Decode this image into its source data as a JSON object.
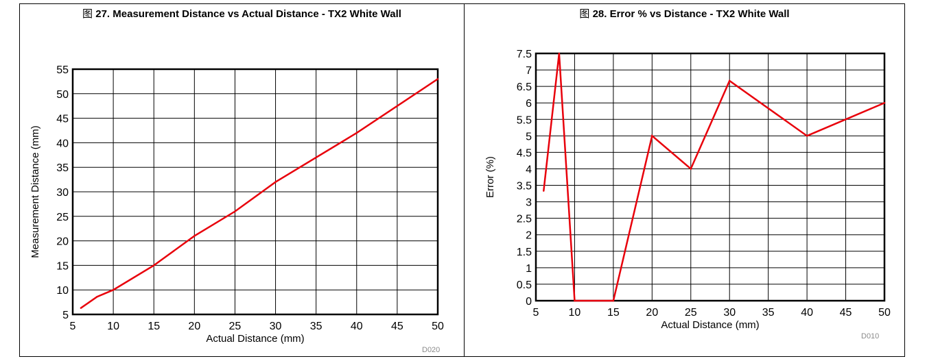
{
  "chart_data": [
    {
      "type": "line",
      "title_prefix": "图",
      "title_number": "27.",
      "title": "Measurement Distance vs Actual Distance - TX2 White Wall",
      "xlabel": "Actual Distance (mm)",
      "ylabel": "Measurement Distance (mm)",
      "xlim": [
        5,
        50
      ],
      "ylim": [
        5,
        55
      ],
      "xticks": [
        "5",
        "10",
        "15",
        "20",
        "25",
        "30",
        "35",
        "40",
        "45",
        "50"
      ],
      "yticks": [
        "5",
        "10",
        "15",
        "20",
        "25",
        "30",
        "35",
        "40",
        "45",
        "50",
        "55"
      ],
      "grid": true,
      "line_color": "#e8000b",
      "series": [
        {
          "x": [
            6,
            8,
            10,
            15,
            20,
            25,
            30,
            40,
            50
          ],
          "y": [
            6.3,
            8.6,
            10,
            15,
            21,
            26,
            32,
            42,
            53
          ]
        }
      ],
      "figure_id": "D020"
    },
    {
      "type": "line",
      "title_prefix": "图",
      "title_number": "28.",
      "title": "Error % vs Distance - TX2 White Wall",
      "xlabel": "Actual Distance (mm)",
      "ylabel": "Error (%)",
      "xlim": [
        5,
        50
      ],
      "ylim": [
        0,
        7.5
      ],
      "xticks": [
        "5",
        "10",
        "15",
        "20",
        "25",
        "30",
        "35",
        "40",
        "45",
        "50"
      ],
      "yticks": [
        "0",
        "0.5",
        "1",
        "1.5",
        "2",
        "2.5",
        "3",
        "3.5",
        "4",
        "4.5",
        "5",
        "5.5",
        "6",
        "6.5",
        "7",
        "7.5"
      ],
      "grid": true,
      "line_color": "#e8000b",
      "series": [
        {
          "x": [
            6,
            8,
            10,
            15,
            20,
            25,
            30,
            40,
            50
          ],
          "y": [
            3.33,
            7.5,
            0,
            0,
            5,
            4,
            6.67,
            5,
            6
          ]
        }
      ],
      "figure_id": "D010"
    }
  ]
}
